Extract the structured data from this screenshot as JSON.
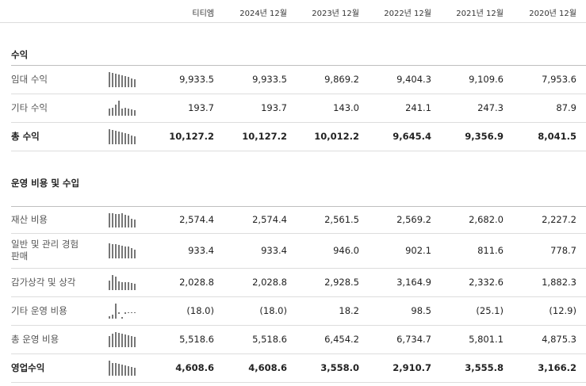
{
  "header": {
    "columns": [
      "티티엠",
      "2024년 12월",
      "2023년 12월",
      "2022년 12월",
      "2021년 12월",
      "2020년 12월"
    ]
  },
  "sections": [
    {
      "title": "수익",
      "rows": [
        {
          "label": "임대 수익",
          "bold": false,
          "values": [
            "9,933.5",
            "9,933.5",
            "9,869.2",
            "9,404.3",
            "9,109.6",
            "7,953.6"
          ],
          "spark": [
            1.0,
            0.95,
            0.9,
            0.85,
            0.8,
            0.75,
            0.7,
            0.6,
            0.5
          ]
        },
        {
          "label": "기타 수익",
          "bold": false,
          "values": [
            "193.7",
            "193.7",
            "143.0",
            "241.1",
            "247.3",
            "87.9"
          ],
          "spark": [
            0.45,
            0.55,
            0.75,
            1.0,
            0.45,
            0.5,
            0.45,
            0.4,
            0.35
          ]
        },
        {
          "label": "총 수익",
          "bold": true,
          "values": [
            "10,127.2",
            "10,127.2",
            "10,012.2",
            "9,645.4",
            "9,356.9",
            "8,041.5"
          ],
          "spark": [
            1.0,
            0.95,
            0.9,
            0.85,
            0.8,
            0.75,
            0.7,
            0.6,
            0.5
          ]
        }
      ]
    },
    {
      "title": "운영 비용 및 수입",
      "rows": [
        {
          "label": "재산 비용",
          "bold": false,
          "values": [
            "2,574.4",
            "2,574.4",
            "2,561.5",
            "2,569.2",
            "2,682.0",
            "2,227.2"
          ],
          "spark": [
            0.95,
            0.95,
            0.9,
            0.92,
            0.95,
            0.85,
            0.8,
            0.6,
            0.5
          ]
        },
        {
          "label": "일반 및 관리 경험 판매",
          "bold": false,
          "values": [
            "933.4",
            "933.4",
            "946.0",
            "902.1",
            "811.6",
            "778.7"
          ],
          "spark": [
            1.0,
            0.95,
            0.95,
            0.9,
            0.85,
            0.8,
            0.8,
            0.7,
            0.6
          ]
        },
        {
          "label": "감가상각 및 상각",
          "bold": false,
          "values": [
            "2,028.8",
            "2,028.8",
            "2,928.5",
            "3,164.9",
            "2,332.6",
            "1,882.3"
          ],
          "spark": [
            0.65,
            1.0,
            0.9,
            0.6,
            0.55,
            0.5,
            0.5,
            0.45,
            0.4
          ]
        },
        {
          "label": "기타 운영 비용",
          "bold": false,
          "values": [
            "(18.0)",
            "(18.0)",
            "18.2",
            "98.5",
            "(25.1)",
            "(12.9)"
          ],
          "spark": [
            0.15,
            0.25,
            1.0,
            -0.1,
            0.1,
            -0.1,
            0.0,
            0.0,
            0.0
          ]
        },
        {
          "label": "총 운영 비용",
          "bold": false,
          "values": [
            "5,518.6",
            "5,518.6",
            "6,454.2",
            "6,734.7",
            "5,801.1",
            "4,875.3"
          ],
          "spark": [
            0.75,
            0.9,
            1.0,
            0.95,
            0.9,
            0.85,
            0.8,
            0.75,
            0.7
          ]
        },
        {
          "label": "영업수익",
          "bold": true,
          "values": [
            "4,608.6",
            "4,608.6",
            "3,558.0",
            "2,910.7",
            "3,555.8",
            "3,166.2"
          ],
          "spark": [
            1.0,
            0.85,
            0.85,
            0.8,
            0.75,
            0.7,
            0.65,
            0.6,
            0.55
          ]
        }
      ]
    }
  ]
}
